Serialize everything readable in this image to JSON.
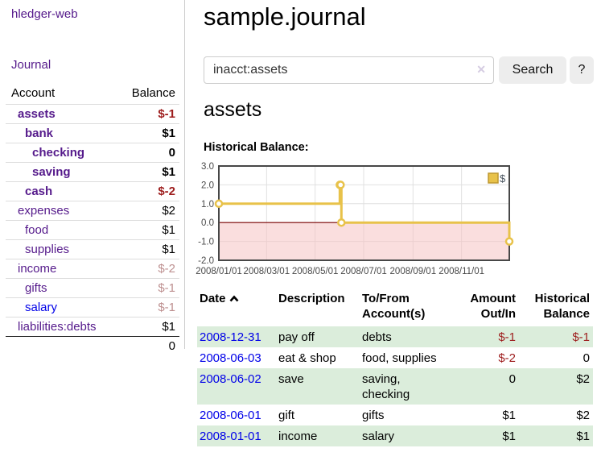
{
  "app": {
    "title": "hledger-web"
  },
  "sidebar": {
    "journal_link": "Journal",
    "accounts_table": {
      "headers": [
        "Account",
        "Balance"
      ],
      "rows": [
        {
          "name": "assets",
          "balance": "$-1",
          "level": 1,
          "bold": true,
          "balance_style": "negative-strong",
          "link_color": "purple"
        },
        {
          "name": "bank",
          "balance": "$1",
          "level": 2,
          "bold": true,
          "balance_style": "normal",
          "link_color": "purple"
        },
        {
          "name": "checking",
          "balance": "0",
          "level": 3,
          "bold": true,
          "balance_style": "normal",
          "link_color": "purple"
        },
        {
          "name": "saving",
          "balance": "$1",
          "level": 3,
          "bold": true,
          "balance_style": "normal",
          "link_color": "purple"
        },
        {
          "name": "cash",
          "balance": "$-2",
          "level": 2,
          "bold": true,
          "balance_style": "negative-strong",
          "link_color": "purple"
        },
        {
          "name": "expenses",
          "balance": "$2",
          "level": 1,
          "bold": false,
          "balance_style": "normal",
          "link_color": "purple"
        },
        {
          "name": "food",
          "balance": "$1",
          "level": 2,
          "bold": false,
          "balance_style": "normal",
          "link_color": "purple"
        },
        {
          "name": "supplies",
          "balance": "$1",
          "level": 2,
          "bold": false,
          "balance_style": "normal",
          "link_color": "purple"
        },
        {
          "name": "income",
          "balance": "$-2",
          "level": 1,
          "bold": false,
          "balance_style": "negative-muted",
          "link_color": "purple"
        },
        {
          "name": "gifts",
          "balance": "$-1",
          "level": 2,
          "bold": false,
          "balance_style": "negative-muted",
          "link_color": "purple"
        },
        {
          "name": "salary",
          "balance": "$-1",
          "level": 2,
          "bold": false,
          "balance_style": "negative-muted",
          "link_color": "blue"
        },
        {
          "name": "liabilities:debts",
          "balance": "$1",
          "level": 1,
          "bold": false,
          "balance_style": "normal",
          "link_color": "purple"
        }
      ],
      "total": "0"
    }
  },
  "main": {
    "title": "sample.journal",
    "search": {
      "value": "inacct:assets",
      "clear_icon": "✕",
      "search_button": "Search",
      "help_button": "?"
    },
    "account_heading": "assets",
    "chart_label": "Historical Balance:"
  },
  "chart_data": {
    "type": "line",
    "subtype": "step",
    "title": "Historical Balance",
    "legend": {
      "label": "$",
      "position": "top-right"
    },
    "ylim": [
      -2.0,
      3.0
    ],
    "y_ticks": [
      "3.0",
      "2.0",
      "1.0",
      "0.0",
      "-1.0",
      "-2.0"
    ],
    "y_tick_values": [
      3,
      2,
      1,
      0,
      -1,
      -2
    ],
    "x_ticks": [
      "2008/01/01",
      "2008/03/01",
      "2008/05/01",
      "2008/07/01",
      "2008/09/01",
      "2008/11/01"
    ],
    "x_tick_days": [
      0,
      60,
      121,
      182,
      244,
      305
    ],
    "x_range_days": [
      0,
      365
    ],
    "grid": true,
    "negative_region_shaded": true,
    "series": [
      {
        "name": "$",
        "points": [
          {
            "date": "2008-01-01",
            "day": 0,
            "value": 1
          },
          {
            "date": "2008-06-01",
            "day": 152,
            "value": 2
          },
          {
            "date": "2008-06-02",
            "day": 153,
            "value": 2
          },
          {
            "date": "2008-06-03",
            "day": 154,
            "value": 0
          },
          {
            "date": "2008-12-31",
            "day": 365,
            "value": -1
          }
        ]
      }
    ]
  },
  "register": {
    "columns": [
      "Date",
      "Description",
      "To/From Account(s)",
      "Amount Out/In",
      "Historical Balance"
    ],
    "sort_column": "Date",
    "sort_direction": "ascending",
    "rows": [
      {
        "date": "2008-12-31",
        "description": "pay off",
        "accounts": "debts",
        "amount": "$-1",
        "balance": "$-1",
        "amount_negative": true,
        "balance_negative": true,
        "striped": true
      },
      {
        "date": "2008-06-03",
        "description": "eat & shop",
        "accounts": "food, supplies",
        "amount": "$-2",
        "balance": "0",
        "amount_negative": true,
        "balance_negative": false,
        "striped": false
      },
      {
        "date": "2008-06-02",
        "description": "save",
        "accounts": "saving, checking",
        "amount": "0",
        "balance": "$2",
        "amount_negative": false,
        "balance_negative": false,
        "striped": true
      },
      {
        "date": "2008-06-01",
        "description": "gift",
        "accounts": "gifts",
        "amount": "$1",
        "balance": "$2",
        "amount_negative": false,
        "balance_negative": false,
        "striped": false
      },
      {
        "date": "2008-01-01",
        "description": "income",
        "accounts": "salary",
        "amount": "$1",
        "balance": "$1",
        "amount_negative": false,
        "balance_negative": false,
        "striped": true
      }
    ]
  },
  "colors": {
    "link_purple": "#551a8b",
    "link_blue": "#0000e8",
    "negative_strong": "#9d1c1c",
    "negative_muted": "#bd8f8f",
    "row_green": "#dbeddb",
    "chart_line": "#e8c24a",
    "chart_marker_fill": "#ffffff",
    "chart_negative_fill": "rgba(246,195,195,0.55)",
    "chart_zero_line": "#7b0000",
    "chart_border": "#474747",
    "chart_grid": "#e0e0e0",
    "chart_tick_text": "#4a4a4a",
    "legend_square_border": "#bd9730",
    "button_bg": "#ededed",
    "divider": "#cccccc"
  }
}
